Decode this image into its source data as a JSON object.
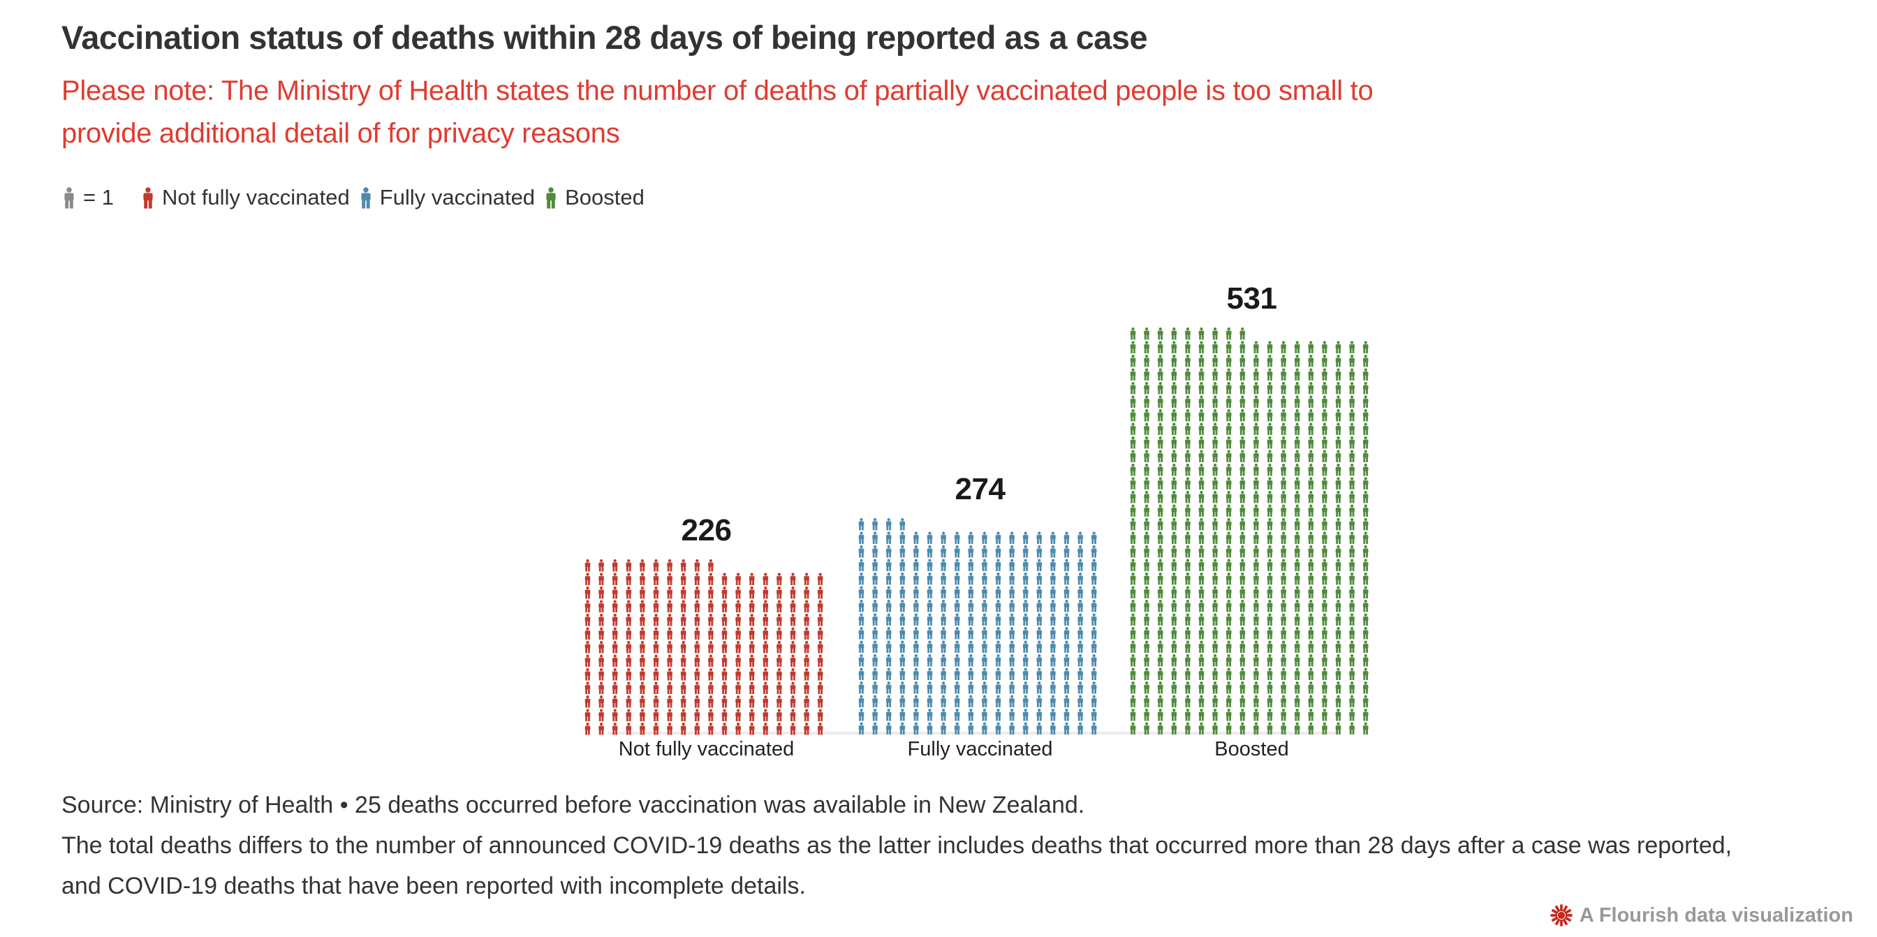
{
  "header": {
    "title": "Vaccination status of deaths within 28 days of being reported as a case",
    "subtitle_lines": [
      "Please note: The Ministry of Health states the number of deaths of partially vaccinated people is too small to",
      "provide additional detail of for privacy reasons"
    ],
    "subtitle_color": "#e03b30"
  },
  "legend": {
    "unit_icon": "person-icon",
    "unit_icon_color": "#8a8a8a",
    "unit_label": "= 1",
    "items": [
      {
        "label": "Not fully vaccinated",
        "color": "#c23b2e"
      },
      {
        "label": "Fully vaccinated",
        "color": "#4e8bae"
      },
      {
        "label": "Boosted",
        "color": "#518b3c"
      }
    ]
  },
  "chart_data": {
    "type": "pictogram",
    "icon": "person",
    "unit_value": 1,
    "columns": 18,
    "categories": [
      "Not fully vaccinated",
      "Fully vaccinated",
      "Boosted"
    ],
    "values": [
      226,
      274,
      531
    ],
    "value_labels": [
      "226",
      "274",
      "531"
    ],
    "series": [
      {
        "name": "Not fully vaccinated",
        "values": [
          226
        ],
        "color": "#c23b2e"
      },
      {
        "name": "Fully vaccinated",
        "values": [
          274
        ],
        "color": "#4e8bae"
      },
      {
        "name": "Boosted",
        "values": [
          531
        ],
        "color": "#518b3c"
      }
    ],
    "colors": [
      "#c23b2e",
      "#4e8bae",
      "#518b3c"
    ],
    "title": "Vaccination status of deaths within 28 days of being reported as a case",
    "legend_position": "top",
    "grid": false,
    "fill_direction": "bottom-up, remainder row at top-left"
  },
  "footer": {
    "lines": [
      "Source: Ministry of Health • 25 deaths occurred before vaccination was available in New Zealand.",
      "The total deaths differs to the number of announced COVID-19 deaths as the latter includes deaths that occurred more than 28 days after a case was reported,",
      "and COVID-19 deaths that have been reported with incomplete details."
    ]
  },
  "credit": {
    "label": "A Flourish data visualization",
    "icon": "flourish-starburst-icon",
    "icon_color": "#c6271e",
    "text_color": "#999999"
  }
}
